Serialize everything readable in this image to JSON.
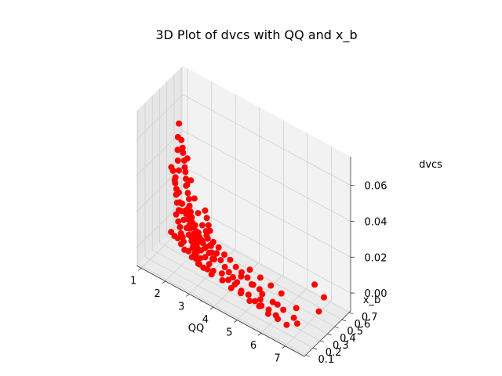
{
  "chart_data": {
    "type": "scatter",
    "projection": "3d",
    "title": "3D Plot of dvcs with QQ and x_b",
    "xlabel": "QQ",
    "ylabel": "x_b",
    "zlabel": "dvcs",
    "xlim": [
      0.8,
      7.8
    ],
    "ylim": [
      0.08,
      0.72
    ],
    "zlim": [
      -0.01,
      0.076
    ],
    "x_ticks": [
      "1",
      "2",
      "3",
      "4",
      "5",
      "6",
      "7"
    ],
    "y_ticks": [
      "0.1",
      "0.2",
      "0.3",
      "0.4",
      "0.5",
      "0.6",
      "0.7"
    ],
    "z_ticks": [
      "0.00",
      "0.02",
      "0.04",
      "0.06"
    ],
    "grid": true,
    "marker_color": "#ff0000",
    "pane_color": "#f2f2f2",
    "series": [
      {
        "points": [
          [
            1.0,
            0.6,
            0.05
          ],
          [
            1.05,
            0.57,
            0.044
          ],
          [
            1.1,
            0.55,
            0.038
          ],
          [
            1.2,
            0.52,
            0.034
          ],
          [
            1.3,
            0.5,
            0.03
          ],
          [
            1.25,
            0.47,
            0.027
          ],
          [
            1.35,
            0.45,
            0.022
          ],
          [
            1.4,
            0.43,
            0.02
          ],
          [
            1.5,
            0.41,
            0.017
          ],
          [
            1.6,
            0.4,
            0.014
          ],
          [
            1.55,
            0.38,
            0.012
          ],
          [
            1.7,
            0.36,
            0.01
          ],
          [
            1.8,
            0.35,
            0.008
          ],
          [
            1.9,
            0.33,
            0.006
          ],
          [
            2.0,
            0.32,
            0.005
          ],
          [
            2.1,
            0.3,
            0.004
          ],
          [
            1.3,
            0.42,
            0.033
          ],
          [
            1.45,
            0.4,
            0.028
          ],
          [
            1.6,
            0.38,
            0.024
          ],
          [
            1.75,
            0.36,
            0.021
          ],
          [
            1.9,
            0.34,
            0.018
          ],
          [
            2.05,
            0.32,
            0.015
          ],
          [
            2.2,
            0.31,
            0.012
          ],
          [
            2.35,
            0.29,
            0.01
          ],
          [
            2.5,
            0.28,
            0.008
          ],
          [
            2.6,
            0.26,
            0.006
          ],
          [
            2.8,
            0.25,
            0.005
          ],
          [
            3.0,
            0.23,
            0.004
          ],
          [
            1.5,
            0.33,
            0.04
          ],
          [
            1.7,
            0.31,
            0.035
          ],
          [
            1.9,
            0.3,
            0.03
          ],
          [
            2.1,
            0.28,
            0.026
          ],
          [
            2.3,
            0.27,
            0.022
          ],
          [
            2.5,
            0.25,
            0.018
          ],
          [
            2.7,
            0.24,
            0.015
          ],
          [
            2.9,
            0.22,
            0.012
          ],
          [
            3.1,
            0.21,
            0.01
          ],
          [
            3.3,
            0.2,
            0.008
          ],
          [
            3.5,
            0.19,
            0.006
          ],
          [
            3.7,
            0.18,
            0.004
          ],
          [
            1.2,
            0.65,
            0.03
          ],
          [
            1.5,
            0.6,
            0.022
          ],
          [
            1.8,
            0.55,
            0.016
          ],
          [
            2.1,
            0.5,
            0.012
          ],
          [
            2.4,
            0.46,
            0.009
          ],
          [
            2.7,
            0.42,
            0.007
          ],
          [
            3.0,
            0.38,
            0.005
          ],
          [
            3.3,
            0.35,
            0.004
          ],
          [
            1.6,
            0.5,
            0.01
          ],
          [
            1.8,
            0.48,
            0.008
          ],
          [
            2.0,
            0.46,
            0.006
          ],
          [
            2.2,
            0.44,
            0.005
          ],
          [
            2.4,
            0.42,
            0.004
          ],
          [
            2.6,
            0.4,
            0.003
          ],
          [
            2.8,
            0.38,
            0.003
          ],
          [
            3.0,
            0.36,
            0.002
          ],
          [
            1.4,
            0.36,
            0.002
          ],
          [
            1.6,
            0.34,
            0.002
          ],
          [
            1.8,
            0.32,
            0.003
          ],
          [
            2.0,
            0.3,
            0.002
          ],
          [
            2.2,
            0.28,
            0.001
          ],
          [
            2.4,
            0.27,
            0.002
          ],
          [
            2.6,
            0.25,
            0.001
          ],
          [
            2.8,
            0.24,
            0.002
          ],
          [
            3.0,
            0.22,
            0.001
          ],
          [
            3.2,
            0.21,
            0.001
          ],
          [
            3.4,
            0.2,
            0.002
          ],
          [
            3.6,
            0.19,
            0.001
          ],
          [
            2.0,
            0.4,
            0.018
          ],
          [
            2.2,
            0.38,
            0.015
          ],
          [
            2.4,
            0.36,
            0.013
          ],
          [
            2.6,
            0.34,
            0.011
          ],
          [
            2.8,
            0.32,
            0.009
          ],
          [
            3.0,
            0.3,
            0.007
          ],
          [
            3.2,
            0.29,
            0.006
          ],
          [
            3.4,
            0.27,
            0.005
          ],
          [
            2.5,
            0.22,
            0.028
          ],
          [
            2.6,
            0.2,
            0.024
          ],
          [
            2.7,
            0.19,
            0.02
          ],
          [
            2.8,
            0.18,
            0.016
          ],
          [
            2.9,
            0.17,
            0.013
          ],
          [
            3.0,
            0.16,
            0.01
          ],
          [
            3.1,
            0.15,
            0.008
          ],
          [
            3.2,
            0.14,
            0.006
          ],
          [
            2.4,
            0.17,
            0.068
          ],
          [
            2.45,
            0.17,
            0.064
          ],
          [
            2.5,
            0.16,
            0.062
          ],
          [
            2.55,
            0.16,
            0.058
          ],
          [
            2.6,
            0.15,
            0.055
          ],
          [
            2.6,
            0.16,
            0.052
          ],
          [
            2.65,
            0.15,
            0.049
          ],
          [
            2.7,
            0.15,
            0.046
          ],
          [
            2.6,
            0.17,
            0.044
          ],
          [
            2.7,
            0.16,
            0.041
          ],
          [
            2.75,
            0.16,
            0.038
          ],
          [
            2.8,
            0.15,
            0.035
          ],
          [
            2.85,
            0.15,
            0.032
          ],
          [
            2.9,
            0.14,
            0.03
          ],
          [
            2.95,
            0.14,
            0.027
          ],
          [
            3.0,
            0.14,
            0.025
          ],
          [
            3.05,
            0.13,
            0.022
          ],
          [
            3.1,
            0.13,
            0.02
          ],
          [
            3.15,
            0.13,
            0.018
          ],
          [
            3.2,
            0.12,
            0.016
          ],
          [
            3.3,
            0.2,
            0.034
          ],
          [
            3.4,
            0.19,
            0.031
          ],
          [
            3.5,
            0.18,
            0.028
          ],
          [
            3.4,
            0.18,
            0.024
          ],
          [
            3.5,
            0.17,
            0.021
          ],
          [
            3.6,
            0.17,
            0.018
          ],
          [
            3.7,
            0.16,
            0.015
          ],
          [
            3.8,
            0.16,
            0.012
          ],
          [
            3.2,
            0.3,
            0.018
          ],
          [
            3.4,
            0.28,
            0.014
          ],
          [
            3.6,
            0.26,
            0.01
          ],
          [
            3.8,
            0.25,
            0.008
          ],
          [
            4.0,
            0.24,
            0.006
          ],
          [
            4.2,
            0.23,
            0.005
          ],
          [
            4.4,
            0.22,
            0.004
          ],
          [
            4.6,
            0.21,
            0.003
          ],
          [
            3.2,
            0.42,
            0.004
          ],
          [
            3.5,
            0.4,
            0.003
          ],
          [
            3.8,
            0.38,
            0.003
          ],
          [
            4.1,
            0.36,
            0.002
          ],
          [
            4.4,
            0.34,
            0.002
          ],
          [
            4.7,
            0.32,
            0.002
          ],
          [
            5.0,
            0.3,
            0.001
          ],
          [
            5.3,
            0.29,
            0.001
          ],
          [
            4.0,
            0.2,
            0.004
          ],
          [
            4.3,
            0.19,
            0.003
          ],
          [
            4.6,
            0.18,
            0.003
          ],
          [
            4.9,
            0.17,
            0.002
          ],
          [
            5.2,
            0.17,
            0.002
          ],
          [
            5.5,
            0.16,
            0.001
          ],
          [
            5.8,
            0.15,
            0.001
          ],
          [
            6.1,
            0.15,
            0.001
          ],
          [
            4.5,
            0.42,
            0.001
          ],
          [
            5.0,
            0.4,
            0.001
          ],
          [
            5.5,
            0.38,
            0.001
          ],
          [
            6.0,
            0.36,
            0.001
          ],
          [
            4.2,
            0.14,
            0.004
          ],
          [
            4.6,
            0.13,
            0.003
          ],
          [
            5.0,
            0.13,
            0.003
          ],
          [
            5.4,
            0.12,
            0.002
          ],
          [
            5.8,
            0.12,
            0.002
          ],
          [
            6.2,
            0.11,
            0.001
          ],
          [
            6.6,
            0.11,
            0.001
          ],
          [
            7.0,
            0.1,
            0.001
          ],
          [
            4.5,
            0.3,
            0.002
          ],
          [
            5.0,
            0.28,
            0.002
          ],
          [
            5.5,
            0.26,
            0.001
          ],
          [
            6.0,
            0.24,
            0.001
          ],
          [
            6.5,
            0.22,
            0.001
          ],
          [
            7.0,
            0.2,
            0.001
          ],
          [
            6.6,
            0.62,
            0.0
          ],
          [
            7.2,
            0.55,
            0.0
          ],
          [
            7.5,
            0.38,
            0.001
          ],
          [
            6.8,
            0.3,
            0.001
          ],
          [
            6.2,
            0.24,
            0.001
          ],
          [
            5.6,
            0.2,
            0.001
          ],
          [
            7.2,
            0.18,
            0.0
          ],
          [
            6.4,
            0.15,
            0.0
          ]
        ]
      }
    ]
  }
}
